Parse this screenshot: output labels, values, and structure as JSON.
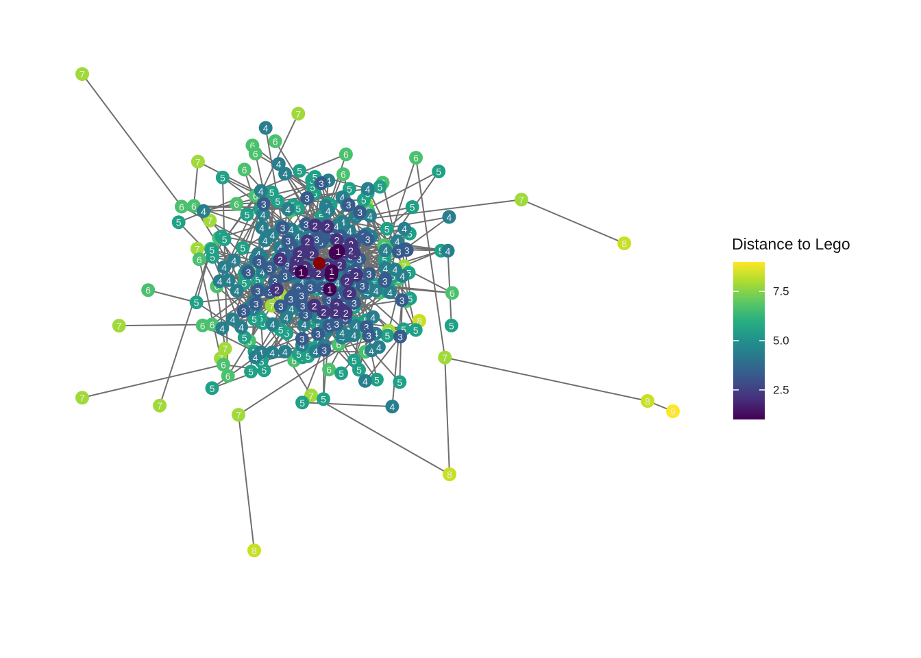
{
  "legend": {
    "title": "Distance to Lego",
    "ticks": [
      {
        "value": 2.5,
        "label": "2.5"
      },
      {
        "value": 5.0,
        "label": "5.0"
      },
      {
        "value": 7.5,
        "label": "7.5"
      }
    ],
    "scale_min": 1,
    "scale_max": 9,
    "palette": "viridis"
  },
  "colors": {
    "edge": "#6e6e6e",
    "center_node": "#8b0000",
    "label_text": "#ececec",
    "distance_colors": {
      "1": "#440154",
      "2": "#46337e",
      "3": "#365c8d",
      "4": "#277f8e",
      "5": "#1fa187",
      "6": "#4ac16d",
      "7": "#a0da39",
      "8": "#c8e020",
      "9": "#fde725"
    }
  },
  "graph": {
    "center_node": "Lego",
    "node_label_field": "distance",
    "distance_counts": {
      "1": 6,
      "2": 30,
      "3": 78,
      "4": 120,
      "5": 95,
      "6": 45,
      "7": 20,
      "8": 5,
      "9": 1
    }
  }
}
